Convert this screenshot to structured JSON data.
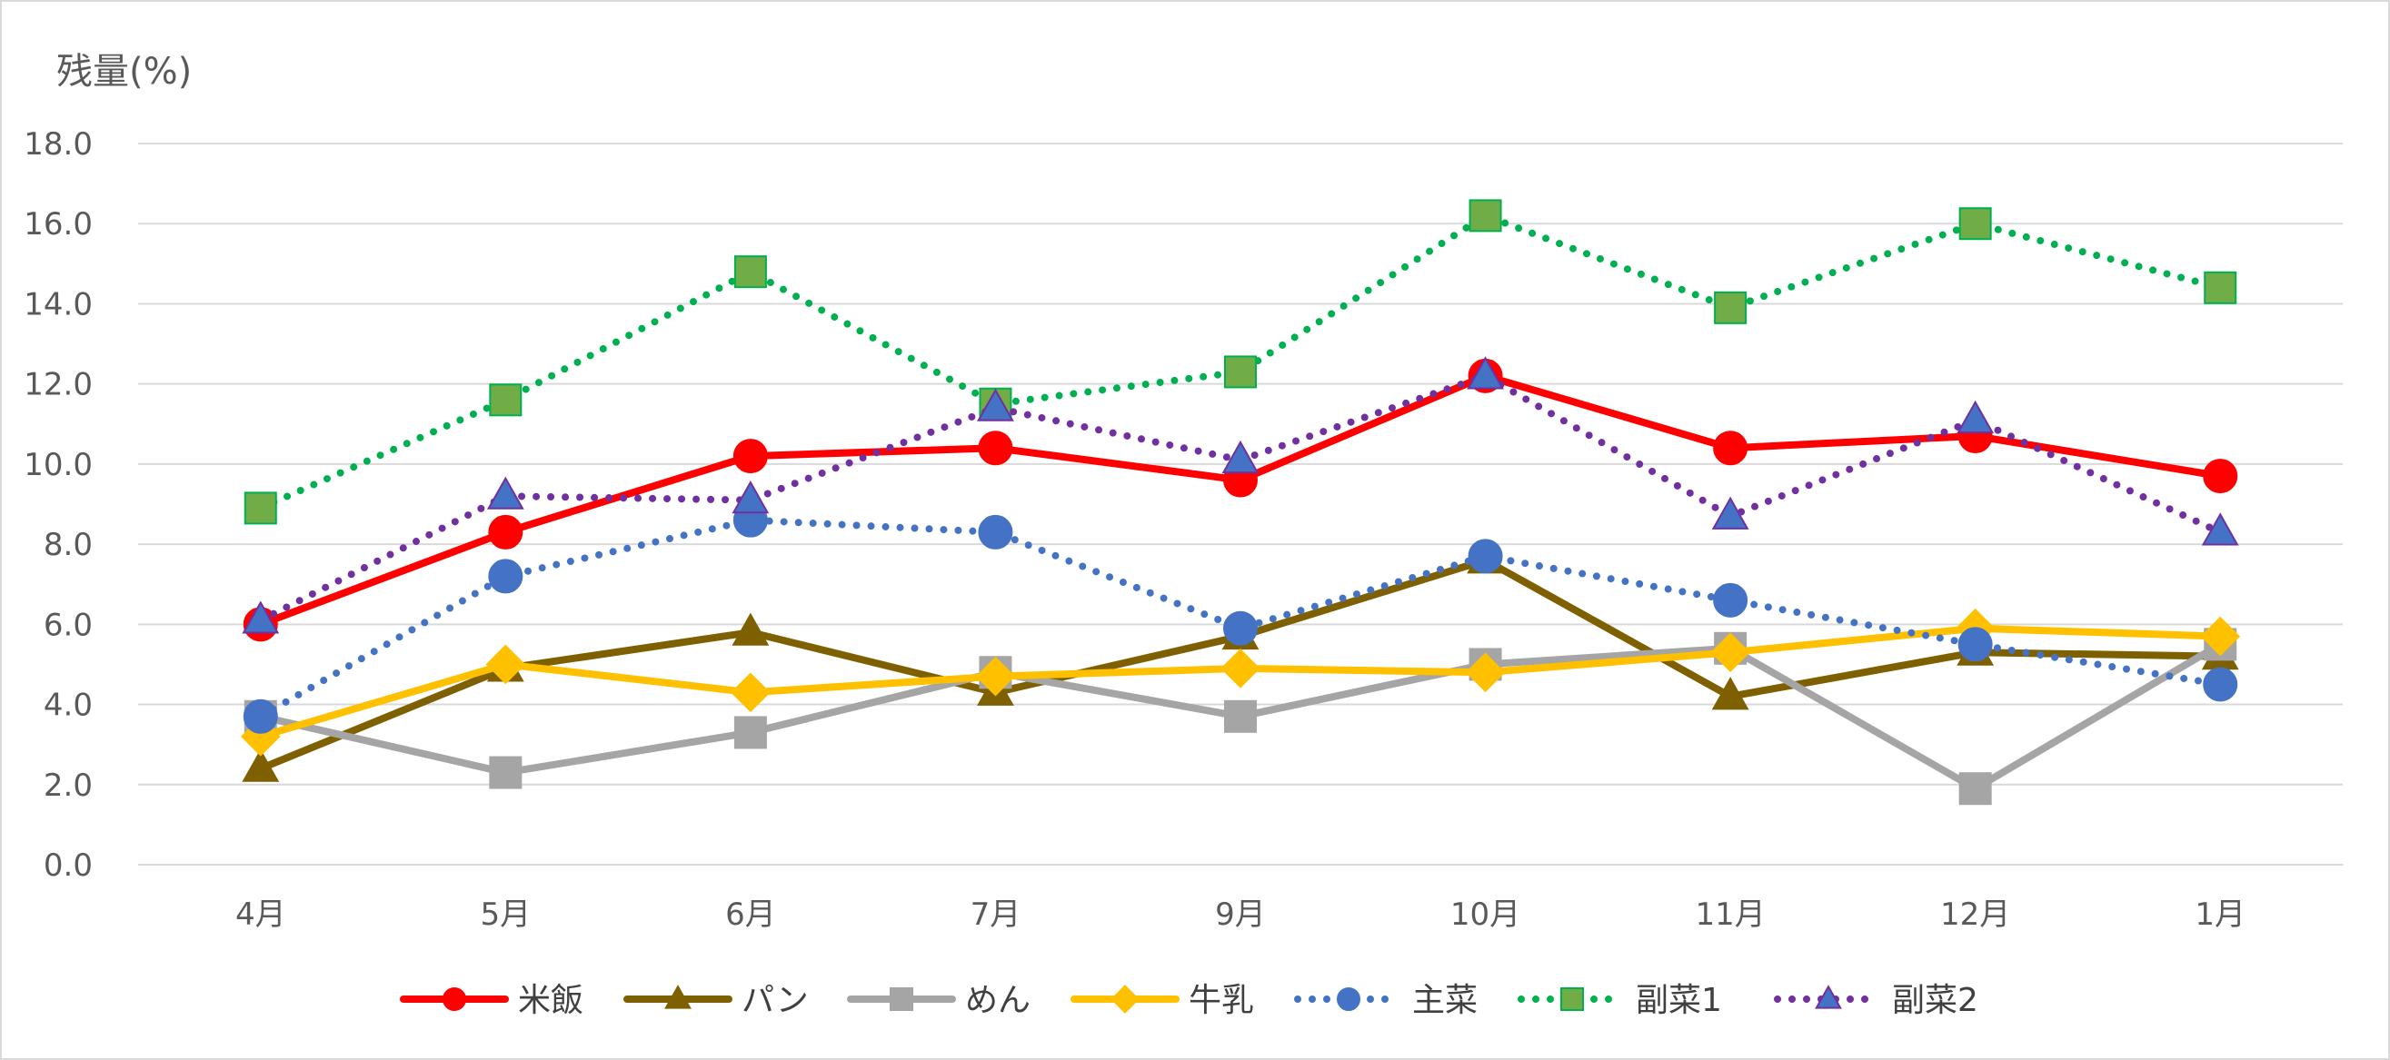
{
  "chart_data": {
    "type": "line",
    "ylabel": "残量(%)",
    "ylim": [
      0,
      18
    ],
    "y_ticks": [
      "0.0",
      "2.0",
      "4.0",
      "6.0",
      "8.0",
      "10.0",
      "12.0",
      "14.0",
      "16.0",
      "18.0"
    ],
    "categories": [
      "4月",
      "5月",
      "6月",
      "7月",
      "9月",
      "10月",
      "11月",
      "12月",
      "1月"
    ],
    "grid": true,
    "legend_position": "bottom",
    "series": [
      {
        "name": "米飯",
        "color": "#ff0000",
        "dash": "solid",
        "marker": "circle",
        "values": [
          6.0,
          8.3,
          10.2,
          10.4,
          9.6,
          12.2,
          10.4,
          10.7,
          9.7
        ]
      },
      {
        "name": "パン",
        "color": "#7f6000",
        "dash": "solid",
        "marker": "triangle",
        "values": [
          2.4,
          4.9,
          5.8,
          4.3,
          5.7,
          7.6,
          4.2,
          5.3,
          5.2
        ]
      },
      {
        "name": "めん",
        "color": "#a5a5a5",
        "dash": "solid",
        "marker": "square",
        "values": [
          3.7,
          2.3,
          3.3,
          4.8,
          3.7,
          5.0,
          5.4,
          1.9,
          5.5
        ]
      },
      {
        "name": "牛乳",
        "color": "#ffc000",
        "dash": "solid",
        "marker": "diamond",
        "values": [
          3.2,
          5.0,
          4.3,
          4.7,
          4.9,
          4.8,
          5.3,
          5.9,
          5.7
        ]
      },
      {
        "name": "主菜",
        "color": "#4472c4",
        "dash": "dot",
        "marker": "circle",
        "values": [
          3.7,
          7.2,
          8.6,
          8.3,
          5.9,
          7.7,
          6.6,
          5.5,
          4.5
        ]
      },
      {
        "name": "副菜1",
        "color": "#00b050",
        "fill": "#70ad47",
        "dash": "dot",
        "marker": "square",
        "values": [
          8.9,
          11.6,
          14.8,
          11.5,
          12.3,
          16.2,
          13.9,
          16.0,
          14.4
        ]
      },
      {
        "name": "副菜2",
        "color": "#7030a0",
        "fill": "#4472c4",
        "dash": "dot",
        "marker": "triangle",
        "values": [
          6.1,
          9.2,
          9.1,
          11.4,
          10.1,
          12.2,
          8.7,
          11.1,
          8.3
        ]
      }
    ]
  }
}
